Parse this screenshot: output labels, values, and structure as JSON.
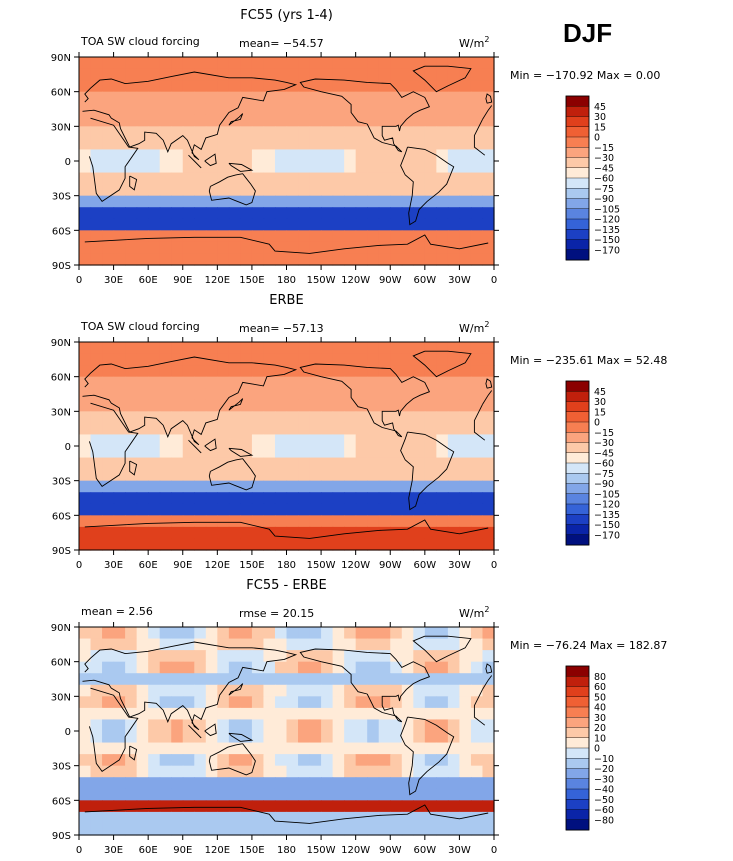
{
  "season": "DJF",
  "lat_labels": [
    "90N",
    "60N",
    "30N",
    "0",
    "30S",
    "60S",
    "90S"
  ],
  "lon_labels": [
    "0",
    "30E",
    "60E",
    "90E",
    "120E",
    "150E",
    "180",
    "150W",
    "120W",
    "90W",
    "60W",
    "30W",
    "0"
  ],
  "panels": [
    {
      "title": "FC55 (yrs 1-4)",
      "left_label": "TOA SW cloud forcing",
      "stat1": "mean=  −54.57",
      "stat2": "",
      "units": "W/m",
      "units_sup": "2",
      "minmax": "Min = −170.92  Max =    0.00",
      "levels": [
        "45",
        "30",
        "15",
        "0",
        "−15",
        "−30",
        "−45",
        "−60",
        "−75",
        "−90",
        "−105",
        "−120",
        "−135",
        "−150",
        "−170"
      ],
      "colors": [
        "#8b0000",
        "#c0200c",
        "#e0401c",
        "#f06034",
        "#f77f52",
        "#fba47e",
        "#fdc9a8",
        "#ffebd8",
        "#d4e6f8",
        "#aac9f0",
        "#82a6e8",
        "#5a84e0",
        "#3563d8",
        "#1c40c4",
        "#0a24a8",
        "#00107f"
      ],
      "type": "model"
    },
    {
      "title": "ERBE",
      "left_label": "TOA SW cloud forcing",
      "stat1": "mean=  −57.13",
      "stat2": "",
      "units": "W/m",
      "units_sup": "2",
      "minmax": "Min = −235.61  Max =  52.48",
      "levels": [
        "45",
        "30",
        "15",
        "0",
        "−15",
        "−30",
        "−45",
        "−60",
        "−75",
        "−90",
        "−105",
        "−120",
        "−135",
        "−150",
        "−170"
      ],
      "colors": [
        "#8b0000",
        "#c0200c",
        "#e0401c",
        "#f06034",
        "#f77f52",
        "#fba47e",
        "#fdc9a8",
        "#ffebd8",
        "#d4e6f8",
        "#aac9f0",
        "#82a6e8",
        "#5a84e0",
        "#3563d8",
        "#1c40c4",
        "#0a24a8",
        "#00107f"
      ],
      "type": "obs"
    },
    {
      "title": "FC55 - ERBE",
      "left_label": "mean =    2.56",
      "stat1": "rmse =  20.15",
      "stat2": "",
      "units": "W/m",
      "units_sup": "2",
      "minmax": "Min = −76.24  Max = 182.87",
      "levels": [
        "80",
        "60",
        "50",
        "40",
        "30",
        "20",
        "10",
        "0",
        "−10",
        "−20",
        "−30",
        "−40",
        "−50",
        "−60",
        "−80"
      ],
      "colors": [
        "#8b0000",
        "#c0200c",
        "#e0401c",
        "#f06034",
        "#f77f52",
        "#fba47e",
        "#fdc9a8",
        "#ffebd8",
        "#d4e6f8",
        "#aac9f0",
        "#82a6e8",
        "#5a84e0",
        "#3563d8",
        "#1c40c4",
        "#0a24a8",
        "#00107f"
      ],
      "type": "diff"
    }
  ]
}
